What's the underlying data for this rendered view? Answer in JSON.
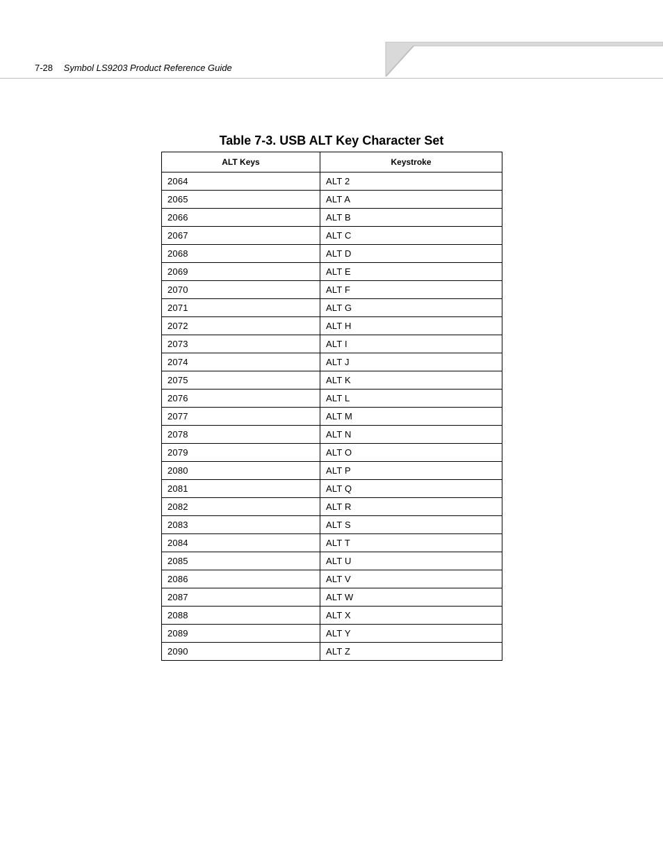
{
  "header": {
    "page_number": "7-28",
    "doc_title": "Symbol LS9203 Product Reference Guide"
  },
  "table": {
    "caption": "Table 7-3. USB ALT Key Character Set",
    "columns": [
      "ALT Keys",
      "Keystroke"
    ],
    "rows": [
      [
        "2064",
        "ALT 2"
      ],
      [
        "2065",
        "ALT A"
      ],
      [
        "2066",
        "ALT B"
      ],
      [
        "2067",
        "ALT C"
      ],
      [
        "2068",
        "ALT D"
      ],
      [
        "2069",
        "ALT E"
      ],
      [
        "2070",
        "ALT F"
      ],
      [
        "2071",
        "ALT G"
      ],
      [
        "2072",
        "ALT H"
      ],
      [
        "2073",
        "ALT I"
      ],
      [
        "2074",
        "ALT J"
      ],
      [
        "2075",
        "ALT K"
      ],
      [
        "2076",
        "ALT L"
      ],
      [
        "2077",
        "ALT M"
      ],
      [
        "2078",
        "ALT N"
      ],
      [
        "2079",
        "ALT O"
      ],
      [
        "2080",
        "ALT P"
      ],
      [
        "2081",
        "ALT Q"
      ],
      [
        "2082",
        "ALT R"
      ],
      [
        "2083",
        "ALT S"
      ],
      [
        "2084",
        "ALT T"
      ],
      [
        "2085",
        "ALT U"
      ],
      [
        "2086",
        "ALT V"
      ],
      [
        "2087",
        "ALT W"
      ],
      [
        "2088",
        "ALT X"
      ],
      [
        "2089",
        "ALT Y"
      ],
      [
        "2090",
        "ALT Z"
      ]
    ]
  },
  "style": {
    "page_bg": "#ffffff",
    "tab_fill": "#d9d9d9",
    "tab_stroke": "#c0c0c0",
    "rule_color": "#bdbdbd",
    "border_color": "#000000",
    "caption_fontsize": 18,
    "th_fontsize": 12,
    "td_fontsize": 13
  }
}
